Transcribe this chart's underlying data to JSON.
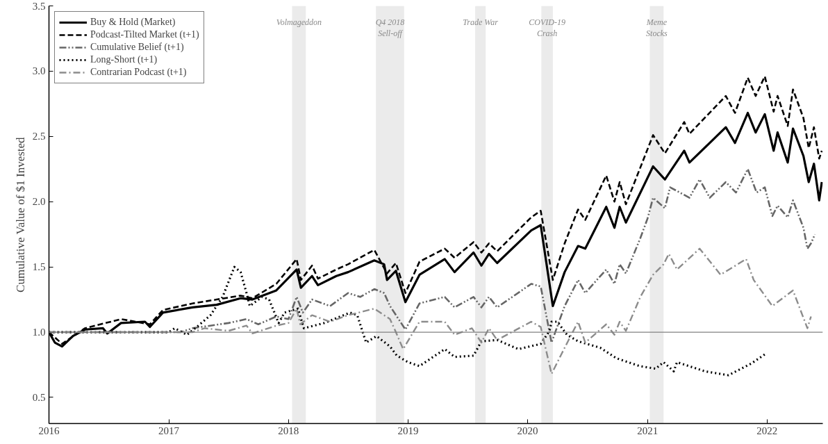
{
  "chart_data": {
    "type": "line",
    "ylabel": "Cumulative Value of $1 Invested",
    "xlim": [
      "2016-01-01",
      "2022-06-20"
    ],
    "ylim": [
      0.3,
      3.5
    ],
    "xticks": [
      "2016",
      "2017",
      "2018",
      "2019",
      "2020",
      "2021",
      "2022"
    ],
    "yticks": [
      0.5,
      {
        "value": 1.0,
        "label": "1.0"
      },
      1.5,
      {
        "value": 2.0,
        "label": "2.0"
      },
      2.5,
      {
        "value": 3.0,
        "label": "3.0"
      },
      3.5
    ],
    "grid": false,
    "legend": "top left",
    "ref_lines": [
      {
        "axis": "y",
        "value": 1.0,
        "color": "#808080",
        "line_style": "solid"
      }
    ],
    "bands": [
      {
        "axis": "x",
        "from": "2018-01-12",
        "to": "2018-02-23",
        "label": "Volmageddon",
        "color": "#ebebeb"
      },
      {
        "axis": "x",
        "from": "2018-09-25",
        "to": "2018-12-20",
        "label": "Q4 2018\nSell-off",
        "color": "#ebebeb"
      },
      {
        "axis": "x",
        "from": "2019-07-25",
        "to": "2019-08-26",
        "label": "Trade War",
        "color": "#ebebeb"
      },
      {
        "axis": "x",
        "from": "2020-02-12",
        "to": "2020-03-18",
        "label": "COVID-19\nCrash",
        "color": "#ebebeb"
      },
      {
        "axis": "x",
        "from": "2021-01-08",
        "to": "2021-02-19",
        "label": "Meme\nStocks",
        "color": "#ebebeb"
      }
    ],
    "series": [
      {
        "name": "Buy & Hold (Market)",
        "color": "#000000",
        "line_style": "solid",
        "x": [
          "2016-01-01",
          "2016-01-19",
          "2016-02-10",
          "2016-03-14",
          "2016-04-20",
          "2016-06-14",
          "2016-06-27",
          "2016-08-08",
          "2016-10-20",
          "2016-11-04",
          "2016-12-14",
          "2017-03-14",
          "2017-05-27",
          "2017-08-08",
          "2017-09-13",
          "2017-11-25",
          "2018-01-26",
          "2018-02-08",
          "2018-03-14",
          "2018-04-01",
          "2018-05-27",
          "2018-07-02",
          "2018-09-20",
          "2018-10-20",
          "2018-10-29",
          "2018-11-25",
          "2018-12-24",
          "2019-02-05",
          "2019-04-23",
          "2019-05-23",
          "2019-07-20",
          "2019-08-13",
          "2019-09-05",
          "2019-09-30",
          "2020-01-12",
          "2020-02-10",
          "2020-03-18",
          "2020-04-23",
          "2020-06-03",
          "2020-06-25",
          "2020-08-28",
          "2020-09-22",
          "2020-10-08",
          "2020-10-27",
          "2021-01-18",
          "2021-02-23",
          "2021-04-23",
          "2021-05-09",
          "2021-08-28",
          "2021-09-25",
          "2021-11-03",
          "2021-11-27",
          "2021-12-25",
          "2022-01-21",
          "2022-02-02",
          "2022-03-05",
          "2022-03-21",
          "2022-04-22",
          "2022-05-08",
          "2022-05-24",
          "2022-06-09",
          "2022-06-17"
        ],
        "values": [
          1.0,
          0.92,
          0.89,
          0.97,
          1.02,
          1.03,
          0.99,
          1.07,
          1.08,
          1.04,
          1.15,
          1.19,
          1.21,
          1.26,
          1.25,
          1.32,
          1.48,
          1.34,
          1.43,
          1.36,
          1.43,
          1.46,
          1.55,
          1.52,
          1.4,
          1.47,
          1.23,
          1.44,
          1.56,
          1.46,
          1.61,
          1.51,
          1.6,
          1.53,
          1.78,
          1.82,
          1.2,
          1.46,
          1.66,
          1.64,
          1.96,
          1.8,
          1.96,
          1.84,
          2.27,
          2.17,
          2.39,
          2.3,
          2.57,
          2.45,
          2.68,
          2.53,
          2.67,
          2.39,
          2.53,
          2.3,
          2.56,
          2.35,
          2.15,
          2.29,
          2.01,
          2.15
        ]
      },
      {
        "name": "Podcast-Tilted Market (t+1)",
        "color": "#000000",
        "line_style": "dashed",
        "x": [
          "2016-01-01",
          "2016-02-10",
          "2016-04-20",
          "2016-08-08",
          "2016-11-04",
          "2016-12-14",
          "2017-03-14",
          "2017-05-27",
          "2017-08-08",
          "2017-09-13",
          "2017-11-25",
          "2018-01-26",
          "2018-02-08",
          "2018-03-14",
          "2018-04-01",
          "2018-05-27",
          "2018-07-02",
          "2018-09-20",
          "2018-10-29",
          "2018-11-25",
          "2018-12-24",
          "2019-02-05",
          "2019-04-23",
          "2019-05-23",
          "2019-07-20",
          "2019-08-13",
          "2019-09-05",
          "2019-09-30",
          "2020-01-12",
          "2020-02-10",
          "2020-03-18",
          "2020-04-23",
          "2020-06-03",
          "2020-06-25",
          "2020-08-28",
          "2020-09-22",
          "2020-10-08",
          "2020-10-27",
          "2021-01-18",
          "2021-02-23",
          "2021-04-23",
          "2021-05-09",
          "2021-08-28",
          "2021-09-25",
          "2021-11-03",
          "2021-11-27",
          "2021-12-25",
          "2022-01-21",
          "2022-02-02",
          "2022-03-05",
          "2022-03-21",
          "2022-04-22",
          "2022-05-08",
          "2022-05-24",
          "2022-06-09",
          "2022-06-17"
        ],
        "values": [
          1.0,
          0.91,
          1.03,
          1.1,
          1.06,
          1.17,
          1.22,
          1.25,
          1.28,
          1.26,
          1.37,
          1.56,
          1.4,
          1.51,
          1.41,
          1.48,
          1.52,
          1.63,
          1.45,
          1.53,
          1.3,
          1.54,
          1.64,
          1.57,
          1.69,
          1.61,
          1.68,
          1.62,
          1.88,
          1.93,
          1.4,
          1.68,
          1.94,
          1.86,
          2.2,
          2.0,
          2.15,
          1.98,
          2.51,
          2.37,
          2.61,
          2.52,
          2.81,
          2.68,
          2.95,
          2.81,
          2.96,
          2.69,
          2.81,
          2.58,
          2.86,
          2.64,
          2.41,
          2.57,
          2.33,
          2.39
        ]
      },
      {
        "name": "Cumulative Belief (t+1)",
        "color": "#666666",
        "line_style": "dashdotdot",
        "x": [
          "2016-01-01",
          "2017-02-06",
          "2017-03-14",
          "2017-07-02",
          "2017-08-26",
          "2017-10-01",
          "2017-11-25",
          "2018-01-01",
          "2018-01-26",
          "2018-02-14",
          "2018-03-14",
          "2018-05-08",
          "2018-07-02",
          "2018-08-08",
          "2018-09-20",
          "2018-10-20",
          "2018-11-07",
          "2018-12-24",
          "2019-02-05",
          "2019-04-23",
          "2019-05-23",
          "2019-07-20",
          "2019-08-13",
          "2019-09-05",
          "2019-09-30",
          "2020-01-12",
          "2020-02-10",
          "2020-03-14",
          "2020-04-23",
          "2020-06-03",
          "2020-06-25",
          "2020-08-28",
          "2020-09-22",
          "2020-10-08",
          "2020-10-27",
          "2020-12-10",
          "2021-01-01",
          "2021-01-18",
          "2021-02-23",
          "2021-03-11",
          "2021-05-09",
          "2021-06-09",
          "2021-07-10",
          "2021-08-28",
          "2021-09-28",
          "2021-11-03",
          "2021-11-30",
          "2021-12-25",
          "2022-01-17",
          "2022-02-02",
          "2022-03-05",
          "2022-03-21",
          "2022-04-22",
          "2022-05-04",
          "2022-05-15",
          "2022-05-27"
        ],
        "values": [
          1.0,
          1.0,
          1.03,
          1.07,
          1.1,
          1.06,
          1.12,
          1.1,
          1.27,
          1.15,
          1.25,
          1.2,
          1.3,
          1.27,
          1.33,
          1.3,
          1.2,
          1.02,
          1.22,
          1.27,
          1.19,
          1.27,
          1.19,
          1.27,
          1.19,
          1.37,
          1.35,
          0.92,
          1.2,
          1.4,
          1.3,
          1.48,
          1.37,
          1.52,
          1.45,
          1.72,
          1.87,
          2.03,
          1.95,
          2.11,
          2.03,
          2.17,
          2.03,
          2.15,
          2.07,
          2.25,
          2.07,
          2.11,
          1.89,
          1.97,
          1.88,
          2.01,
          1.8,
          1.64,
          1.68,
          1.75
        ]
      },
      {
        "name": "Long-Short (t+1)",
        "color": "#000000",
        "line_style": "dotted",
        "x": [
          "2016-01-01",
          "2017-01-01",
          "2017-01-19",
          "2017-02-25",
          "2017-04-01",
          "2017-05-08",
          "2017-06-14",
          "2017-07-20",
          "2017-08-08",
          "2017-08-26",
          "2017-09-05",
          "2017-10-12",
          "2017-11-03",
          "2017-12-02",
          "2017-12-20",
          "2018-01-30",
          "2018-02-17",
          "2018-04-20",
          "2018-07-08",
          "2018-07-30",
          "2018-08-26",
          "2018-09-27",
          "2018-11-07",
          "2018-11-28",
          "2019-01-01",
          "2019-02-05",
          "2019-04-23",
          "2019-05-23",
          "2019-07-20",
          "2019-08-13",
          "2019-09-30",
          "2019-12-04",
          "2020-02-10",
          "2020-03-08",
          "2020-03-14",
          "2020-04-01",
          "2020-04-30",
          "2020-06-03",
          "2020-08-10",
          "2020-09-28",
          "2020-12-08",
          "2021-01-26",
          "2021-02-19",
          "2021-03-22",
          "2021-04-01",
          "2021-06-25",
          "2021-09-05",
          "2021-11-14",
          "2021-12-25"
        ],
        "values": [
          1.0,
          1.0,
          1.03,
          0.98,
          1.05,
          1.13,
          1.27,
          1.5,
          1.46,
          1.3,
          1.2,
          1.27,
          1.25,
          1.07,
          1.15,
          1.18,
          1.03,
          1.07,
          1.15,
          1.13,
          0.92,
          0.97,
          0.89,
          0.82,
          0.77,
          0.74,
          0.87,
          0.81,
          0.82,
          0.93,
          0.94,
          0.87,
          0.91,
          1.01,
          1.08,
          1.08,
          0.98,
          0.93,
          0.88,
          0.8,
          0.74,
          0.72,
          0.77,
          0.7,
          0.77,
          0.7,
          0.67,
          0.76,
          0.83
        ]
      },
      {
        "name": "Contrarian Podcast (t+1)",
        "color": "#8c8c8c",
        "line_style": "dashdot",
        "x": [
          "2016-01-01",
          "2017-03-14",
          "2017-04-20",
          "2017-07-02",
          "2017-08-26",
          "2017-09-13",
          "2017-11-25",
          "2018-01-01",
          "2018-01-26",
          "2018-02-06",
          "2018-03-14",
          "2018-05-08",
          "2018-07-02",
          "2018-09-20",
          "2018-11-07",
          "2018-11-25",
          "2018-12-17",
          "2019-02-05",
          "2019-04-23",
          "2019-05-23",
          "2019-07-15",
          "2019-08-13",
          "2019-09-05",
          "2019-09-30",
          "2020-01-12",
          "2020-02-10",
          "2020-03-14",
          "2020-04-23",
          "2020-06-03",
          "2020-06-25",
          "2020-08-28",
          "2020-09-22",
          "2020-10-08",
          "2020-10-27",
          "2020-12-10",
          "2021-01-18",
          "2021-02-19",
          "2021-03-07",
          "2021-04-01",
          "2021-06-09",
          "2021-08-12",
          "2021-10-29",
          "2021-11-21",
          "2022-01-17",
          "2022-03-21",
          "2022-05-04",
          "2022-05-15"
        ],
        "values": [
          1.0,
          1.0,
          1.03,
          1.01,
          1.05,
          0.99,
          1.05,
          1.07,
          1.18,
          1.06,
          1.13,
          1.08,
          1.13,
          1.18,
          1.1,
          1.0,
          0.87,
          1.08,
          1.08,
          0.98,
          1.03,
          0.92,
          1.03,
          0.94,
          1.08,
          1.04,
          0.68,
          0.88,
          1.08,
          0.92,
          1.06,
          0.98,
          1.08,
          1.01,
          1.27,
          1.44,
          1.52,
          1.6,
          1.48,
          1.64,
          1.44,
          1.56,
          1.4,
          1.2,
          1.32,
          1.03,
          1.12
        ]
      }
    ]
  }
}
